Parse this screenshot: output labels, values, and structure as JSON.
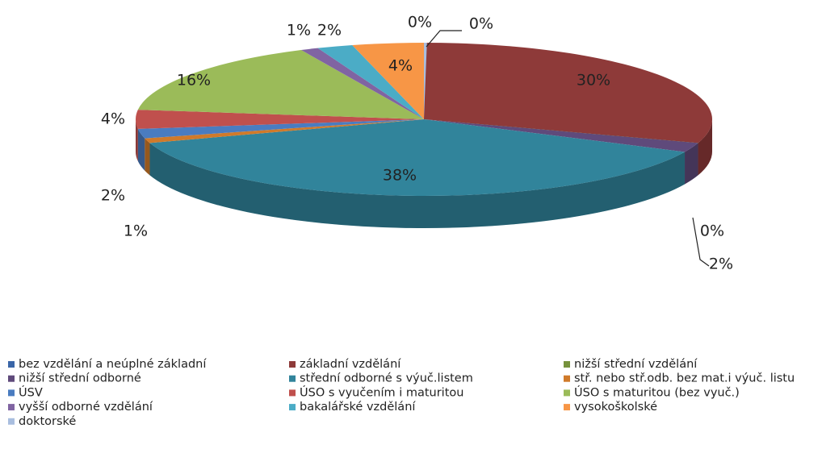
{
  "chart_data": {
    "type": "pie",
    "categories": [
      "bez vzdělání a neúplné základní",
      "základní vzdělání",
      "nižší střední vzdělání",
      "nižší střední odborné",
      "střední odborné s výuč.listem",
      "stř. nebo stř.odb. bez mat.i výuč. listu",
      "ÚSV",
      "ÚSO s vyučením i maturitou",
      "ÚSO s maturitou (bez vyuč.)",
      "vyšší odborné vzdělání",
      "bakalářské vzdělání",
      "vysokoškolské",
      "doktorské"
    ],
    "values": [
      0,
      30,
      0,
      2,
      38,
      1,
      2,
      4,
      16,
      1,
      2,
      4,
      0
    ],
    "value_labels": [
      "0%",
      "30%",
      "0%",
      "2%",
      "38%",
      "1%",
      "2%",
      "4%",
      "16%",
      "1%",
      "2%",
      "4%",
      "0%"
    ],
    "colors": [
      "#3a66a8",
      "#8e3a39",
      "#76923c",
      "#5f4a7b",
      "#31849b",
      "#d07a2a",
      "#4a7cc0",
      "#c0504d",
      "#9bbb59",
      "#8064a2",
      "#4bacc6",
      "#f79646",
      "#a9bedf"
    ],
    "legend": "bottom"
  }
}
